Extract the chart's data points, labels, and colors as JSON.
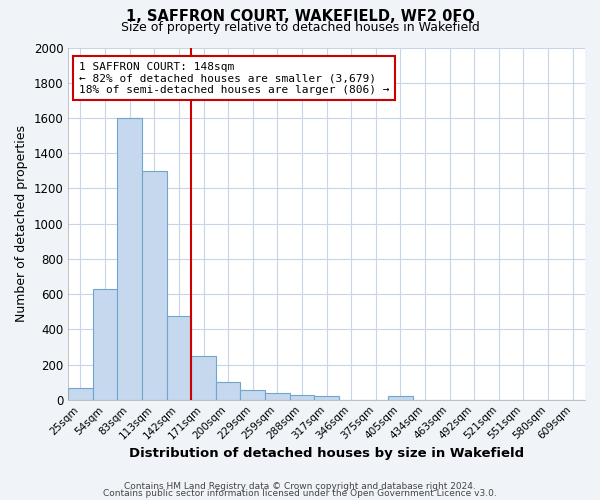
{
  "title": "1, SAFFRON COURT, WAKEFIELD, WF2 0FQ",
  "subtitle": "Size of property relative to detached houses in Wakefield",
  "xlabel": "Distribution of detached houses by size in Wakefield",
  "ylabel": "Number of detached properties",
  "bar_labels": [
    "25sqm",
    "54sqm",
    "83sqm",
    "113sqm",
    "142sqm",
    "171sqm",
    "200sqm",
    "229sqm",
    "259sqm",
    "288sqm",
    "317sqm",
    "346sqm",
    "375sqm",
    "405sqm",
    "434sqm",
    "463sqm",
    "492sqm",
    "521sqm",
    "551sqm",
    "580sqm",
    "609sqm"
  ],
  "bar_values": [
    65,
    630,
    1600,
    1300,
    475,
    250,
    100,
    55,
    40,
    25,
    20,
    0,
    0,
    20,
    0,
    0,
    0,
    0,
    0,
    0,
    0
  ],
  "bar_color": "#c5d8ee",
  "bar_edge_color": "#6ea6cd",
  "vline_x": 4.5,
  "vline_color": "#cc0000",
  "annotation_text": "1 SAFFRON COURT: 148sqm\n← 82% of detached houses are smaller (3,679)\n18% of semi-detached houses are larger (806) →",
  "annotation_box_color": "#ffffff",
  "annotation_box_edge": "#cc0000",
  "ylim": [
    0,
    2000
  ],
  "yticks": [
    0,
    200,
    400,
    600,
    800,
    1000,
    1200,
    1400,
    1600,
    1800,
    2000
  ],
  "footer1": "Contains HM Land Registry data © Crown copyright and database right 2024.",
  "footer2": "Contains public sector information licensed under the Open Government Licence v3.0.",
  "bg_color": "#f0f4f8",
  "plot_bg_color": "#ffffff",
  "grid_color": "#c8d4e8"
}
